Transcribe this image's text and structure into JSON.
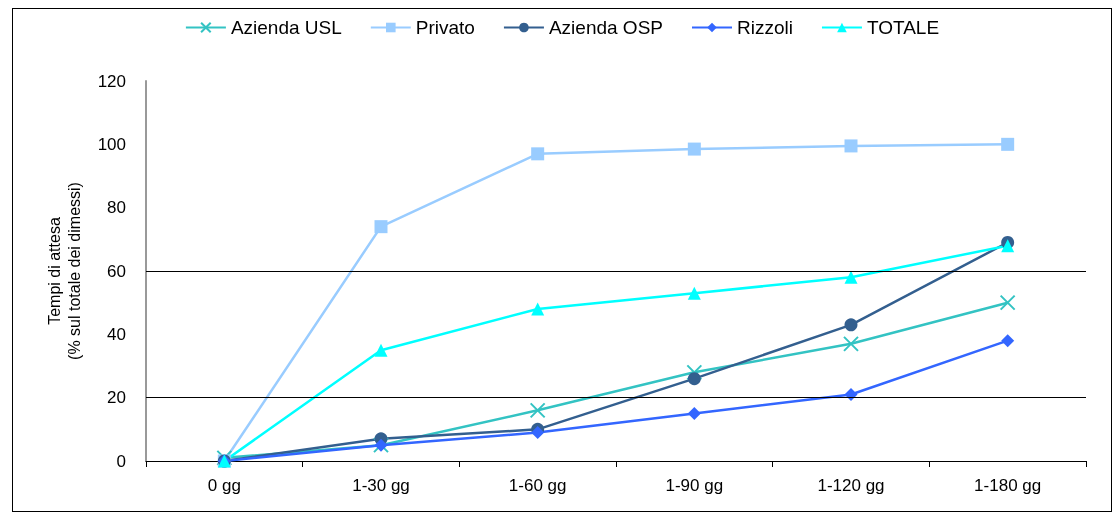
{
  "chart_data": {
    "type": "line",
    "ylabel": "Tempi di attesa\n(% sul totale dei dimessi)",
    "categories": [
      "0 gg",
      "1-30 gg",
      "1-60 gg",
      "1-90 gg",
      "1-120 gg",
      "1-180 gg"
    ],
    "ylim": [
      0,
      120
    ],
    "yticks": [
      0,
      20,
      40,
      60,
      80,
      100,
      120
    ],
    "grid": false,
    "legend": "top",
    "ref_lines": [
      {
        "axis": "y",
        "value": 20,
        "color": "#000000"
      },
      {
        "axis": "y",
        "value": 60,
        "color": "#000000"
      }
    ],
    "series": [
      {
        "name": "Azienda USL",
        "color": "#33c3c3",
        "marker": "cross",
        "values": [
          1,
          5,
          16,
          28,
          37,
          50
        ]
      },
      {
        "name": "Privato",
        "color": "#99ccff",
        "marker": "square",
        "values": [
          0,
          74,
          97,
          98.5,
          99.5,
          100
        ]
      },
      {
        "name": "Azienda OSP",
        "color": "#335f8f",
        "marker": "circle",
        "values": [
          0,
          7,
          10,
          26,
          43,
          69
        ]
      },
      {
        "name": "Rizzoli",
        "color": "#3366ff",
        "marker": "diamond",
        "values": [
          0,
          5,
          9,
          15,
          21,
          38
        ]
      },
      {
        "name": "TOTALE",
        "color": "#00ffff",
        "marker": "triangle",
        "values": [
          0,
          35,
          48,
          53,
          58,
          68
        ]
      }
    ]
  }
}
